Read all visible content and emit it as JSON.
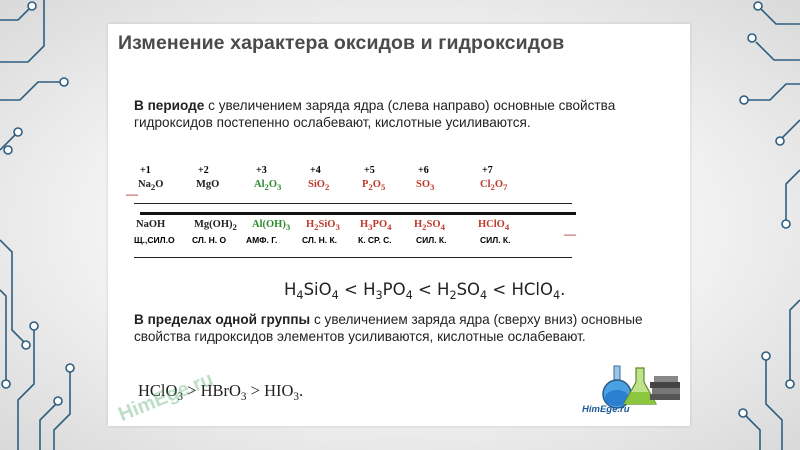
{
  "title": "Изменение характера оксидов и гидроксидов",
  "period": {
    "bold": "В периоде",
    "text": " с увеличением заряда ядра (слева направо) основные свойства гидроксидов постепенно ослабевают, кислотные усиливаются."
  },
  "table": {
    "oxidation_states": [
      "+1",
      "+2",
      "+3",
      "+4",
      "+5",
      "+6",
      "+7"
    ],
    "oxides": [
      {
        "html": "Na<sub>2</sub>O",
        "color": "#222222"
      },
      {
        "html": "MgO",
        "color": "#222222"
      },
      {
        "html": "Al<sub>2</sub>O<sub>3</sub>",
        "color": "#2e8b2e"
      },
      {
        "html": "SiO<sub>2</sub>",
        "color": "#c0392b"
      },
      {
        "html": "P<sub>2</sub>O<sub>5</sub>",
        "color": "#c0392b"
      },
      {
        "html": "SO<sub>3</sub>",
        "color": "#c0392b"
      },
      {
        "html": "Cl<sub>2</sub>O<sub>7</sub>",
        "color": "#c0392b"
      }
    ],
    "hydroxides": [
      {
        "html": "NaOH",
        "color": "#222222"
      },
      {
        "html": "Mg(OH)<sub>2</sub>",
        "color": "#222222"
      },
      {
        "html": "Al(OH)<sub>3</sub>",
        "color": "#2e8b2e"
      },
      {
        "html": "H<sub>2</sub>SiO<sub>3</sub>",
        "color": "#c0392b"
      },
      {
        "html": "H<sub>3</sub>PO<sub>4</sub>",
        "color": "#c0392b"
      },
      {
        "html": "H<sub>2</sub>SO<sub>4</sub>",
        "color": "#c0392b"
      },
      {
        "html": "HClO<sub>4</sub>",
        "color": "#c0392b"
      }
    ],
    "properties": [
      "Щ.,СИЛ.О",
      "СЛ. Н. О",
      "АМФ. Г.",
      "СЛ. Н. К.",
      "К. СР. С.",
      "СИЛ. К.",
      "СИЛ. К."
    ],
    "dash": "—"
  },
  "formula1_html": "H<span class=\"sub\">4</span>SiO<span class=\"sub\">4</span> &lt; H<span class=\"sub\">3</span>PO<span class=\"sub\">4</span> &lt; H<span class=\"sub\">2</span>SO<span class=\"sub\">4</span> &lt; HClO<span class=\"sub\">4</span>.",
  "group": {
    "bold": "В пределах одной группы",
    "text": " с увеличением заряда ядра (сверху вниз) основные свойства гидроксидов элементов усиливаются, кислотные ослабевают."
  },
  "formula2_html": "HClO<span class=\"sub\">3</span> &gt; HBrO<span class=\"sub\">3</span> &gt; HIO<span class=\"sub\">3</span>.",
  "watermark": "HimEge.ru",
  "logo_text": "HimEge.ru",
  "colors": {
    "basic": "#222222",
    "amphoteric": "#2e8b2e",
    "acidic": "#c0392b",
    "decor": "#2e5d7a"
  }
}
